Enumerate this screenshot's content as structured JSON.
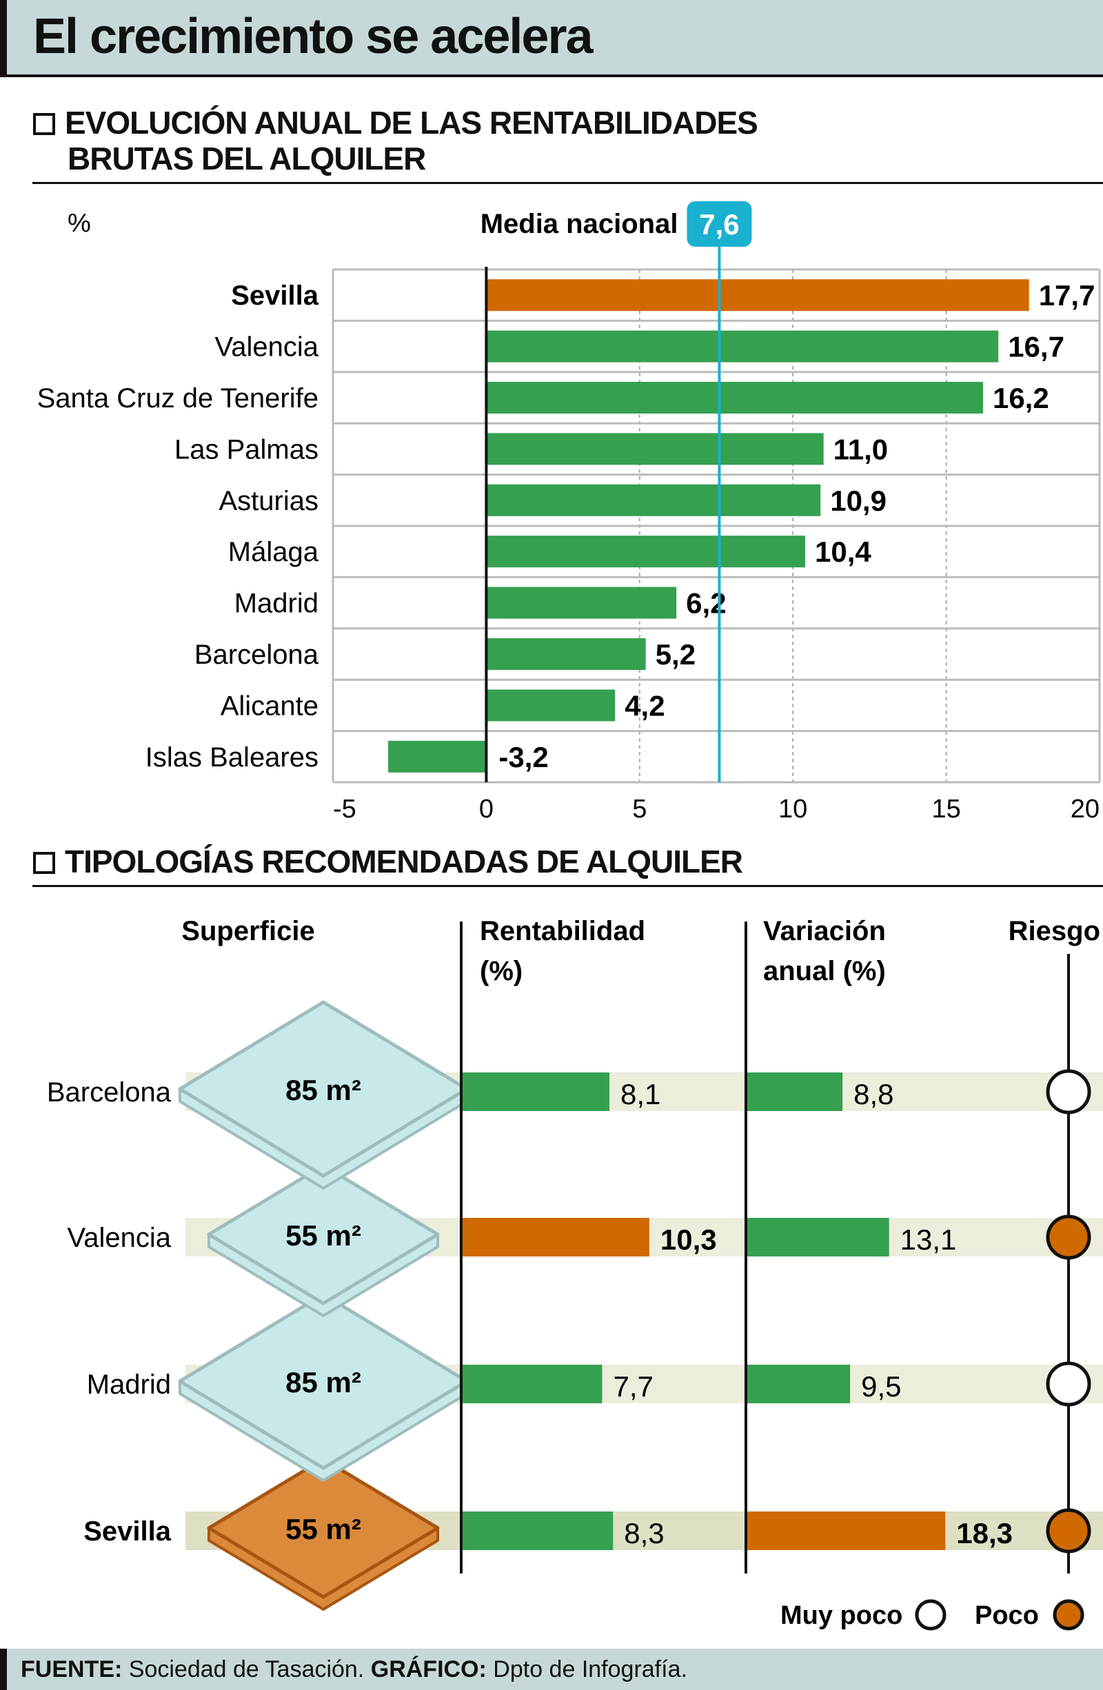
{
  "title": "El crecimiento se acelera",
  "section1": {
    "heading_line1": "EVOLUCIÓN ANUAL DE LAS RENTABILIDADES",
    "heading_line2": "BRUTAS DEL ALQUILER"
  },
  "section2": {
    "heading": "TIPOLOGÍAS RECOMENDADAS DE ALQUILER"
  },
  "colors": {
    "green": "#35a050",
    "orange": "#d06a00",
    "teal": "#1ab0d0",
    "band": "#ededdc",
    "header_bg": "#c6d9d8",
    "diamond_fill": "#c7e9ea",
    "diamond_orange": "#da8a3a"
  },
  "chart_data": [
    {
      "type": "bar",
      "orientation": "horizontal",
      "unit_label": "%",
      "categories": [
        "Sevilla",
        "Valencia",
        "Santa Cruz de Tenerife",
        "Las Palmas",
        "Asturias",
        "Málaga",
        "Madrid",
        "Barcelona",
        "Alicante",
        "Islas Baleares"
      ],
      "values": [
        17.7,
        16.7,
        16.2,
        11.0,
        10.9,
        10.4,
        6.2,
        5.2,
        4.2,
        -3.2
      ],
      "value_labels": [
        "17,7",
        "16,7",
        "16,2",
        "11,0",
        "10,9",
        "10,4",
        "6,2",
        "5,2",
        "4,2",
        "-3,2"
      ],
      "highlight": "Sevilla",
      "xlim": [
        -5,
        20
      ],
      "xticks": [
        -5,
        0,
        5,
        10,
        15,
        20
      ],
      "xtick_labels": [
        "-5",
        "0",
        "5",
        "10",
        "15",
        "20"
      ],
      "grid": "vertical dashed",
      "reference_line": {
        "label": "Media nacional",
        "value": 7.6,
        "value_label": "7,6"
      }
    },
    {
      "type": "table",
      "columns": [
        "Superficie",
        "Rentabilidad (%)",
        "Variación anual (%)",
        "Riesgo"
      ],
      "column_headers": {
        "superficie": "Superficie",
        "rent_1": "Rentabilidad",
        "rent_2": "(%)",
        "var_1": "Variación",
        "var_2": "anual (%)",
        "riesgo": "Riesgo"
      },
      "rows": [
        {
          "city": "Barcelona",
          "surface": "85 m²",
          "surface_m2": 85,
          "rentabilidad": 8.1,
          "rentabilidad_label": "8,1",
          "variacion": 8.8,
          "variacion_label": "8,8",
          "riesgo": "Muy poco",
          "highlight": false
        },
        {
          "city": "Valencia",
          "surface": "55 m²",
          "surface_m2": 55,
          "rentabilidad": 10.3,
          "rentabilidad_label": "10,3",
          "variacion": 13.1,
          "variacion_label": "13,1",
          "riesgo": "Poco",
          "highlight": false,
          "rent_orange": true
        },
        {
          "city": "Madrid",
          "surface": "85 m²",
          "surface_m2": 85,
          "rentabilidad": 7.7,
          "rentabilidad_label": "7,7",
          "variacion": 9.5,
          "variacion_label": "9,5",
          "riesgo": "Muy poco",
          "highlight": false
        },
        {
          "city": "Sevilla",
          "surface": "55 m²",
          "surface_m2": 55,
          "rentabilidad": 8.3,
          "rentabilidad_label": "8,3",
          "variacion": 18.3,
          "variacion_label": "18,3",
          "riesgo": "Poco",
          "highlight": true,
          "var_orange": true
        }
      ],
      "legend": [
        {
          "label": "Muy poco",
          "fill": "#ffffff"
        },
        {
          "label": "Poco",
          "fill": "#d06a00"
        }
      ]
    }
  ],
  "footer": {
    "source_label": "FUENTE:",
    "source": "Sociedad de Tasación.",
    "graphic_label": "GRÁFICO:",
    "graphic": "Dpto de Infografía."
  }
}
